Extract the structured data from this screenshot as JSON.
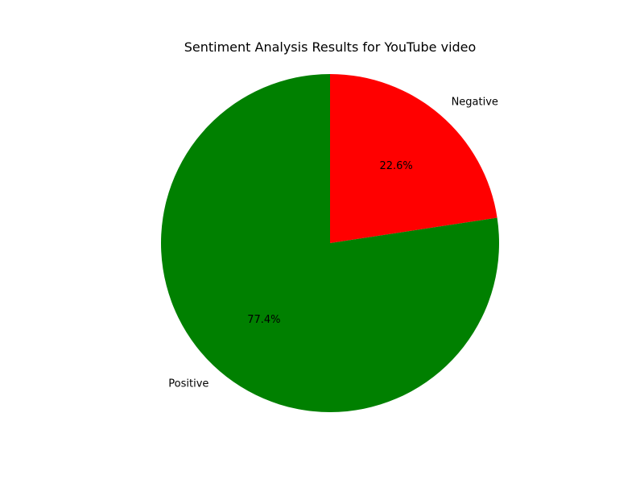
{
  "chart_data": {
    "type": "pie",
    "title": "Sentiment Analysis Results for YouTube video",
    "start_angle_deg": 90,
    "direction": "clockwise",
    "slices": [
      {
        "label": "Negative",
        "value": 22.6,
        "percent_text": "22.6%",
        "color": "#ff0000"
      },
      {
        "label": "Positive",
        "value": 77.4,
        "percent_text": "77.4%",
        "color": "#008000"
      }
    ]
  }
}
